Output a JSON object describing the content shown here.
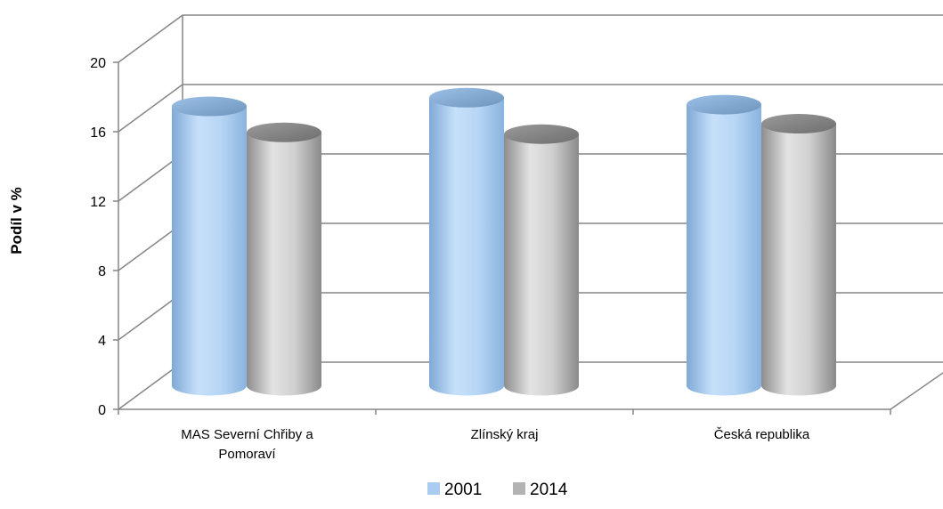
{
  "chart_data": {
    "type": "bar",
    "categories": [
      "MAS Severní Chřiby a Pomoraví",
      "Zlínský kraj",
      "Česká republika"
    ],
    "category_label_lines": [
      [
        "MAS Severní Chřiby a",
        "Pomoraví"
      ],
      [
        "Zlínský kraj"
      ],
      [
        "Česká republika"
      ]
    ],
    "series": [
      {
        "name": "2001",
        "values": [
          16.1,
          16.6,
          16.2
        ],
        "color": "#a9cdf0"
      },
      {
        "name": "2014",
        "values": [
          14.6,
          14.5,
          15.1
        ],
        "color": "#b3b3b3"
      }
    ],
    "ylabel": "Podíl v %",
    "xlabel": "",
    "ylim": [
      0,
      20
    ],
    "yticks": [
      "0",
      "4",
      "8",
      "12",
      "16",
      "20"
    ],
    "grid": true,
    "legend_position": "bottom",
    "style": "3d-cylinder"
  }
}
